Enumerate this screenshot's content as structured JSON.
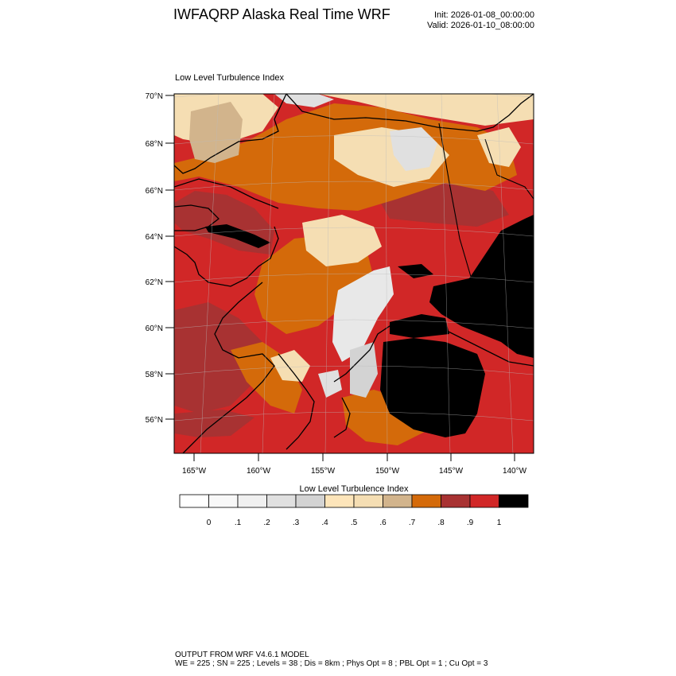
{
  "header": {
    "title": "IWFAQRP Alaska Real Time WRF",
    "init": "Init: 2026-01-08_00:00:00",
    "valid": "Valid: 2026-01-10_08:00:00"
  },
  "map": {
    "panel_title": "Low Level Turbulence Index",
    "lat_labels": [
      "70°N",
      "68°N",
      "66°N",
      "64°N",
      "62°N",
      "60°N",
      "58°N",
      "56°N"
    ],
    "lon_labels": [
      "165°W",
      "160°W",
      "155°W",
      "150°W",
      "145°W",
      "140°W"
    ],
    "colors": {
      "background_red": "#d12727",
      "dark_red": "#a83232",
      "orange": "#d46a0a",
      "tan": "#d2b48c",
      "wheat": "#f5deb3",
      "light_wheat": "#fde5ba",
      "gray": "#d3d3d3",
      "light_gray": "#e8e8e8",
      "black": "#000000"
    }
  },
  "colorbar": {
    "title": "Low Level Turbulence Index",
    "swatches": [
      "#ffffff",
      "#f8f8f8",
      "#f0f0f0",
      "#e0e0e0",
      "#d3d3d3",
      "#fde5ba",
      "#f5deb3",
      "#d2b48c",
      "#d46a0a",
      "#a83232",
      "#d12727",
      "#000000"
    ],
    "labels": [
      "0",
      ".1",
      ".2",
      ".3",
      ".4",
      ".5",
      ".6",
      ".7",
      ".8",
      ".9",
      "1"
    ]
  },
  "footer": {
    "line1": "OUTPUT FROM WRF V4.6.1 MODEL",
    "line2": "WE = 225 ; SN = 225 ; Levels = 38 ; Dis = 8km ; Phys Opt = 8 ; PBL Opt = 1 ; Cu Opt = 3"
  }
}
